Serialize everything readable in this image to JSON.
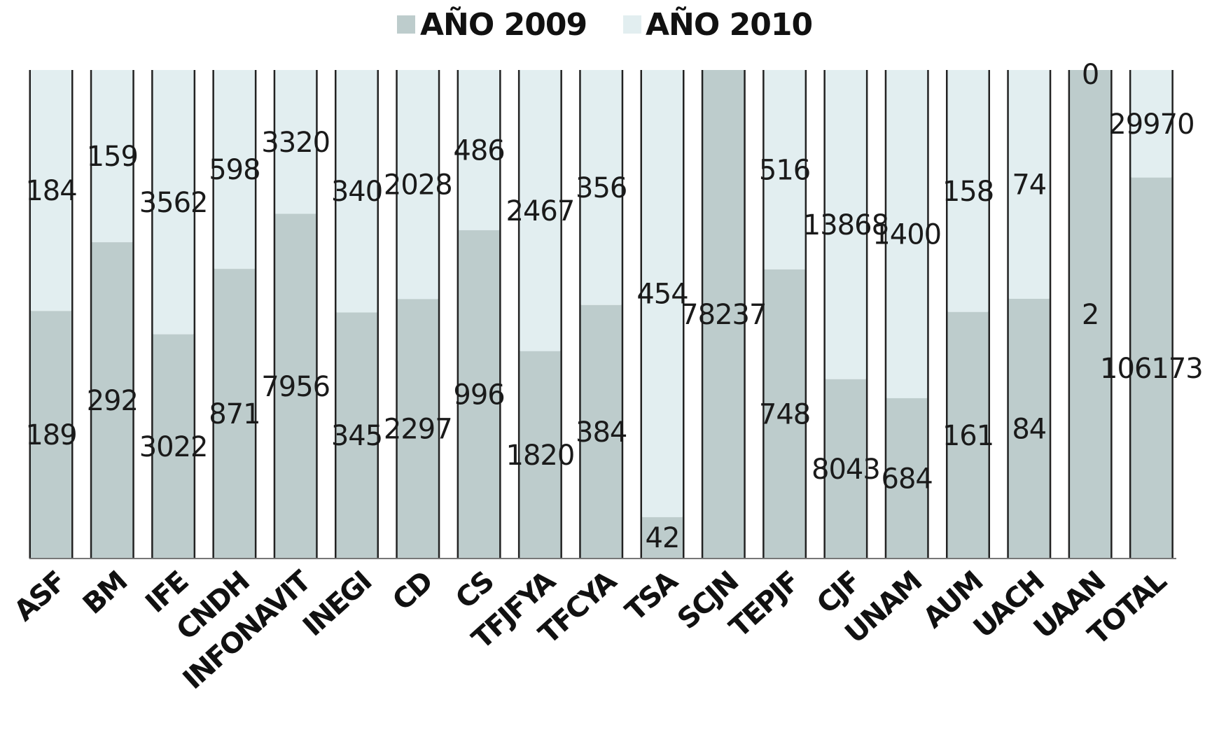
{
  "chart_data": {
    "type": "bar",
    "stacked": "percent",
    "categories": [
      "ASF",
      "BM",
      "IFE",
      "CNDH",
      "INFONAVIT",
      "INEGI",
      "CD",
      "CS",
      "TFJFYA",
      "TFCYA",
      "TSA",
      "SCJN",
      "TEPJF",
      "CJF",
      "UNAM",
      "AUM",
      "UACH",
      "UAAN",
      "TOTAL"
    ],
    "series": [
      {
        "name": "AÑO 2009",
        "color": "#bdcccc",
        "values": [
          189,
          292,
          3022,
          871,
          7956,
          345,
          2297,
          996,
          1820,
          384,
          42,
          78237,
          748,
          8043,
          684,
          161,
          84,
          2,
          106173
        ]
      },
      {
        "name": "AÑO 2010",
        "color": "#e2eef0",
        "values": [
          184,
          159,
          3562,
          598,
          3320,
          340,
          2028,
          486,
          2467,
          356,
          454,
          null,
          516,
          13868,
          1400,
          158,
          74,
          0,
          29970
        ]
      }
    ],
    "legend_position": "top",
    "label_values": {
      "2009": [
        "189",
        "292",
        "3022",
        "871",
        "7956",
        "345",
        "2297",
        "996",
        "1820",
        "384",
        "42",
        "78237",
        "748",
        "8043",
        "684",
        "161",
        "84",
        "2",
        "106173"
      ],
      "2010": [
        "184",
        "159",
        "3562",
        "598",
        "3320",
        "340",
        "2028",
        "486",
        "2467",
        "356",
        "454",
        "",
        "516",
        "13868",
        "1400",
        "158",
        "74",
        "0",
        "29970"
      ]
    }
  }
}
